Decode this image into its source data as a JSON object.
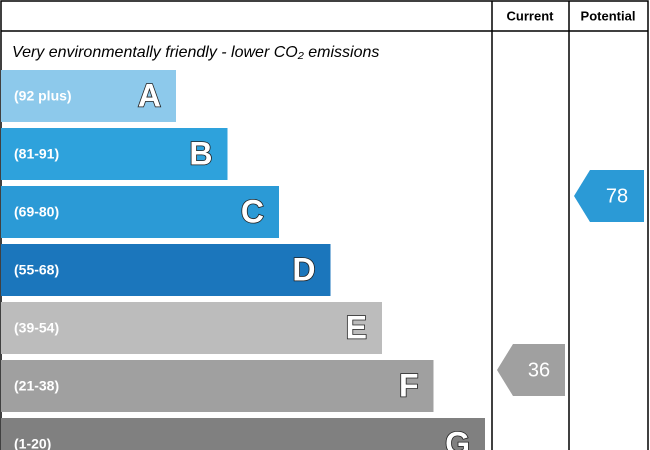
{
  "chart_data": {
    "type": "rating",
    "headers": [
      "Current",
      "Potential"
    ],
    "title": "Very environmentally friendly - lower CO₂ emissions",
    "bands": [
      {
        "range": "(92 plus)",
        "letter": "A",
        "color": "#8dc9eb"
      },
      {
        "range": "(81-91)",
        "letter": "B",
        "color": "#2ea2dc"
      },
      {
        "range": "(69-80)",
        "letter": "C",
        "color": "#2b9ad6"
      },
      {
        "range": "(55-68)",
        "letter": "D",
        "color": "#1b76bc"
      },
      {
        "range": "(39-54)",
        "letter": "E",
        "color": "#bcbcbc"
      },
      {
        "range": "(21-38)",
        "letter": "F",
        "color": "#a0a0a0"
      },
      {
        "range": "(1-20)",
        "letter": "G",
        "color": "#808080"
      }
    ],
    "current": 36,
    "potential": 78,
    "arrow_color": "#a0a0a0",
    "potential_color": "#2b9ad6"
  }
}
